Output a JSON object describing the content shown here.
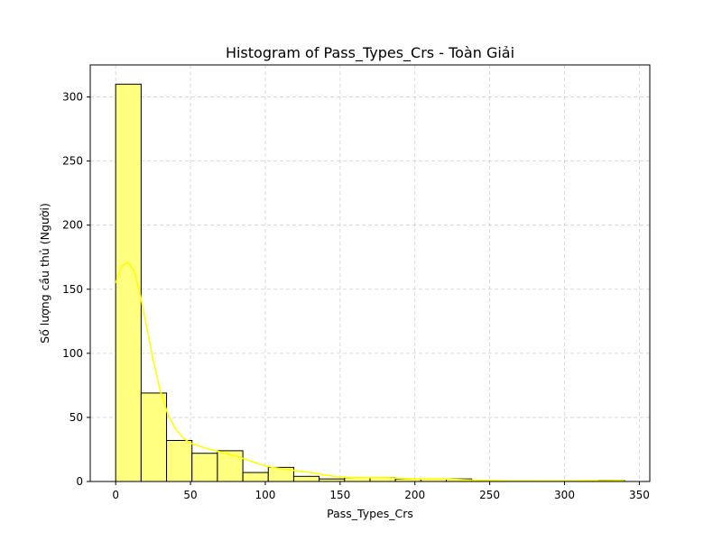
{
  "chart_data": {
    "type": "bar",
    "title": "Histogram of Pass_Types_Crs - Toàn Giải",
    "xlabel": "Pass_Types_Crs",
    "ylabel": "Số lượng cầu thủ (Người)",
    "xlim": [
      -17,
      357
    ],
    "ylim": [
      0,
      325
    ],
    "xticks": [
      0,
      50,
      100,
      150,
      200,
      250,
      300,
      350
    ],
    "yticks": [
      0,
      50,
      100,
      150,
      200,
      250,
      300
    ],
    "grid": true,
    "bar_color": "#ffff80",
    "edge_color": "#000000",
    "kde_color": "#ffff00",
    "bins": [
      {
        "x0": 0,
        "x1": 17,
        "count": 310
      },
      {
        "x0": 17,
        "x1": 34,
        "count": 69
      },
      {
        "x0": 34,
        "x1": 51,
        "count": 32
      },
      {
        "x0": 51,
        "x1": 68,
        "count": 22
      },
      {
        "x0": 68,
        "x1": 85,
        "count": 24
      },
      {
        "x0": 85,
        "x1": 102,
        "count": 7
      },
      {
        "x0": 102,
        "x1": 119,
        "count": 11
      },
      {
        "x0": 119,
        "x1": 136,
        "count": 4
      },
      {
        "x0": 136,
        "x1": 153,
        "count": 2
      },
      {
        "x0": 153,
        "x1": 170,
        "count": 3
      },
      {
        "x0": 170,
        "x1": 187,
        "count": 3
      },
      {
        "x0": 187,
        "x1": 204,
        "count": 2
      },
      {
        "x0": 204,
        "x1": 221,
        "count": 2
      },
      {
        "x0": 221,
        "x1": 238,
        "count": 2
      },
      {
        "x0": 238,
        "x1": 255,
        "count": 0
      },
      {
        "x0": 255,
        "x1": 272,
        "count": 0
      },
      {
        "x0": 272,
        "x1": 289,
        "count": 0
      },
      {
        "x0": 289,
        "x1": 306,
        "count": 0
      },
      {
        "x0": 306,
        "x1": 323,
        "count": 0
      },
      {
        "x0": 323,
        "x1": 340,
        "count": 1
      }
    ],
    "kde": {
      "x": [
        0,
        4,
        8,
        12,
        16,
        20,
        25,
        30,
        35,
        40,
        45,
        50,
        55,
        60,
        70,
        80,
        90,
        100,
        110,
        120,
        130,
        140,
        150,
        160,
        170,
        180,
        190,
        200,
        210,
        220,
        230,
        240,
        260,
        280,
        300,
        320,
        340
      ],
      "y": [
        155,
        168,
        171,
        165,
        148,
        125,
        95,
        70,
        52,
        41,
        34,
        30,
        28,
        26,
        23,
        20,
        16,
        12,
        10,
        8.5,
        7,
        5,
        3.5,
        3,
        3,
        3,
        2.5,
        2,
        2,
        2,
        1.5,
        1,
        0.5,
        0.4,
        0.4,
        0.7,
        0.8
      ]
    }
  }
}
